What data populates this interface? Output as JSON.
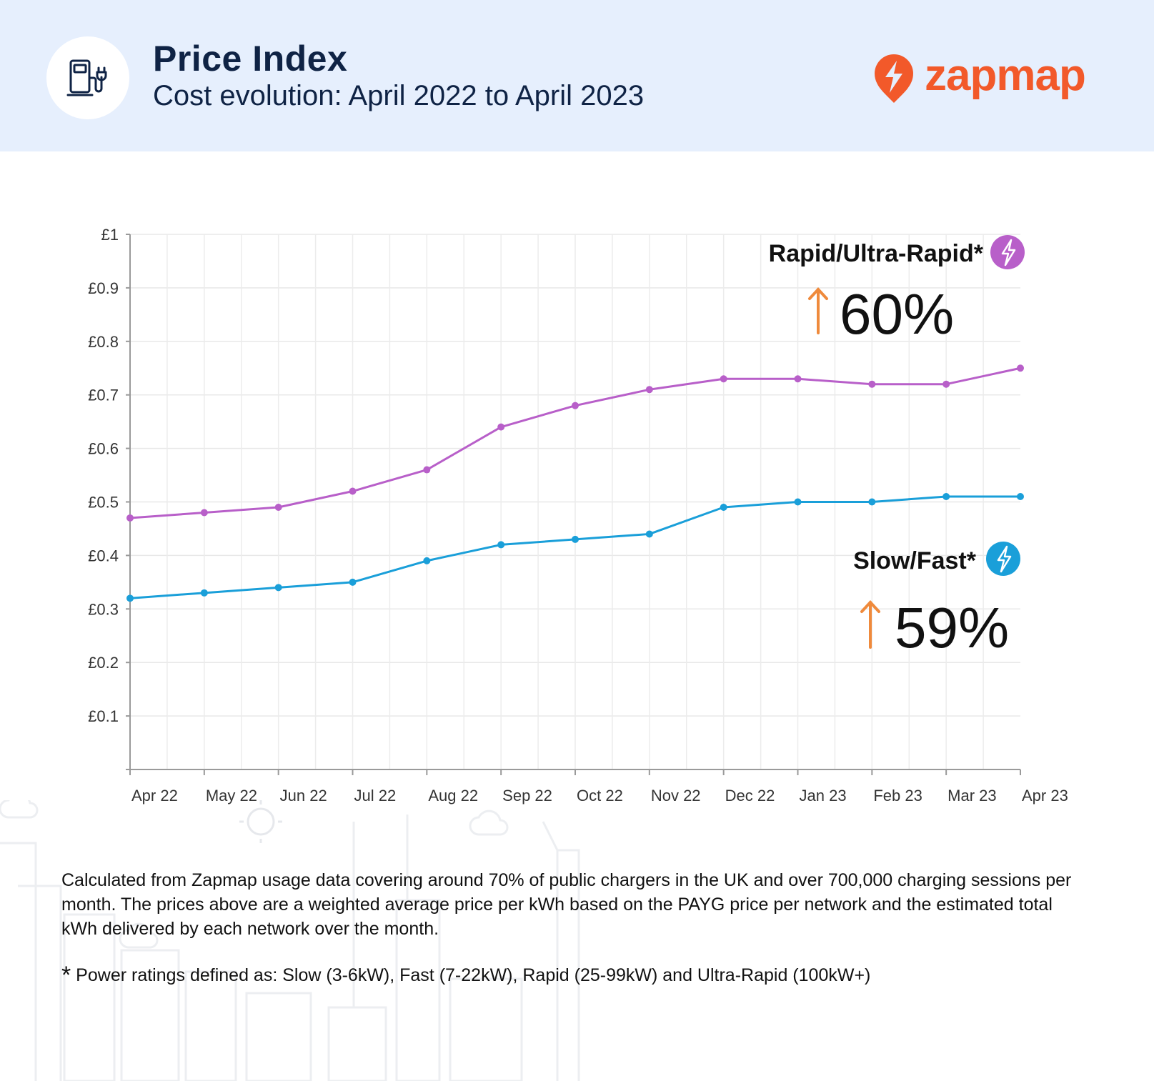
{
  "header": {
    "title": "Price Index",
    "subtitle": "Cost evolution: April 2022 to April 2023",
    "icon": "ev-charger-icon",
    "brand": "zapmap"
  },
  "colors": {
    "header_bg": "#e6effd",
    "rapid": "#b85fc9",
    "slow": "#1a9fd9",
    "arrow": "#ef8a3c",
    "brand": "#f2592a"
  },
  "chart_data": {
    "type": "line",
    "title": "",
    "xlabel": "",
    "ylabel": "",
    "categories": [
      "Apr 22",
      "May 22",
      "Jun 22",
      "Jul 22",
      "Aug 22",
      "Sep 22",
      "Oct 22",
      "Nov 22",
      "Dec 22",
      "Jan 23",
      "Feb 23",
      "Mar 23",
      "Apr 23"
    ],
    "y_ticks": [
      "£0.1",
      "£0.2",
      "£0.3",
      "£0.4",
      "£0.5",
      "£0.6",
      "£0.7",
      "£0.8",
      "£0.9",
      "£1"
    ],
    "ylim": [
      0,
      1
    ],
    "grid": true,
    "series": [
      {
        "name": "Rapid/Ultra-Rapid*",
        "change": "60%",
        "values": [
          0.47,
          0.48,
          0.49,
          0.52,
          0.56,
          0.64,
          0.68,
          0.71,
          0.73,
          0.73,
          0.72,
          0.72,
          0.75
        ]
      },
      {
        "name": "Slow/Fast*",
        "change": "59%",
        "values": [
          0.32,
          0.33,
          0.34,
          0.35,
          0.39,
          0.42,
          0.43,
          0.44,
          0.49,
          0.5,
          0.5,
          0.51,
          0.51
        ]
      }
    ]
  },
  "notes": {
    "methodology": "Calculated from Zapmap usage data covering around 70% of public chargers in the UK and over 700,000 charging sessions per month. The prices above are a weighted average price per kWh based on the PAYG price per network and the estimated total kWh delivered by each network over the month.",
    "footnote_marker": "*",
    "footnote": " Power ratings defined as: Slow (3-6kW), Fast (7-22kW), Rapid (25-99kW) and Ultra-Rapid (100kW+)"
  }
}
